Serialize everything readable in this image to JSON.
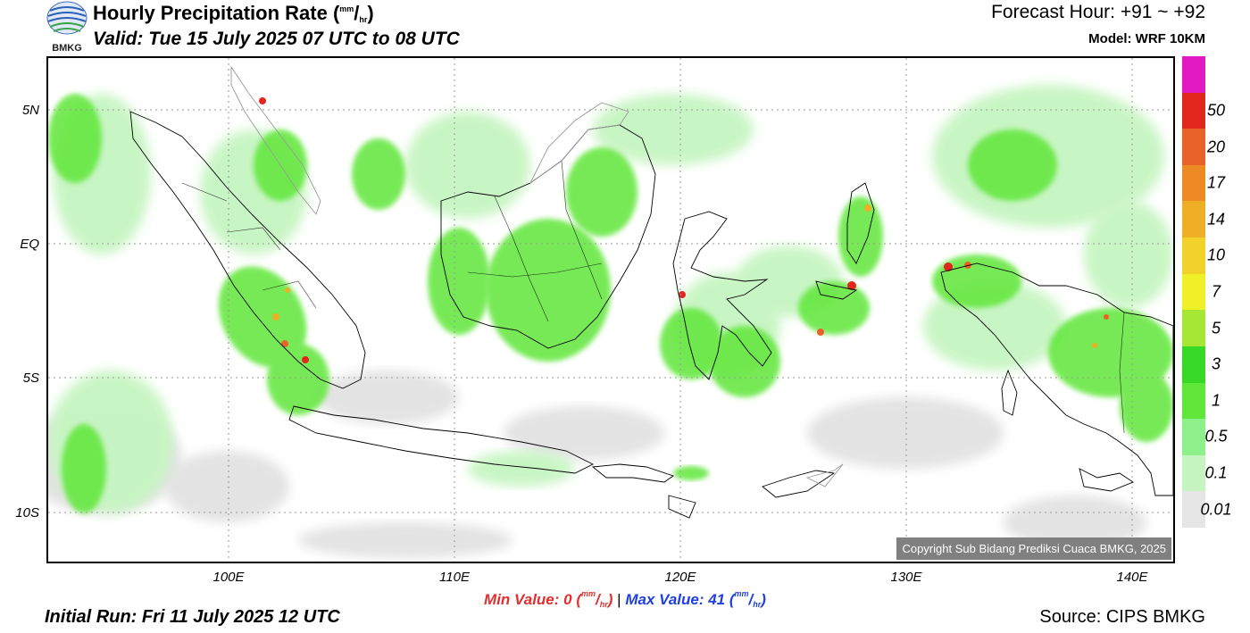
{
  "header": {
    "logo_text": "BMKG",
    "title": "Hourly Precipitation Rate (",
    "title_unit_num": "mm",
    "title_unit_den": "hr",
    "title_close": ")",
    "valid": "Valid: Tue 15 July 2025 07 UTC to 08 UTC",
    "forecast_hour": "Forecast Hour: +91 ~ +92",
    "model": "Model: WRF 10KM"
  },
  "map": {
    "lat_labels": [
      "5N",
      "EQ",
      "5S",
      "10S"
    ],
    "lon_labels": [
      "100E",
      "110E",
      "120E",
      "130E",
      "140E"
    ],
    "copyright": "Copyright Sub Bidang Prediksi Cuaca BMKG, 2025"
  },
  "legend": {
    "levels": [
      "0.01",
      "0.1",
      "0.5",
      "1",
      "3",
      "5",
      "7",
      "10",
      "14",
      "17",
      "20",
      "50"
    ],
    "colors": [
      "#e6e6e6",
      "#c6f5c1",
      "#8ef08a",
      "#5fe639",
      "#38d827",
      "#a6e635",
      "#f0f028",
      "#f2d12b",
      "#eeae25",
      "#ee8a24",
      "#e8622a",
      "#e1261e",
      "#e11ac4"
    ]
  },
  "footer": {
    "min_label": "Min Value:   0 (",
    "max_label": "Max Value:  41 (",
    "unit_num": "mm",
    "unit_den": "hr",
    "unit_close": ")",
    "separator": "|",
    "initial_run": "Initial Run: Fri 11 July 2025 12 UTC",
    "source": "Source: CIPS BMKG"
  }
}
